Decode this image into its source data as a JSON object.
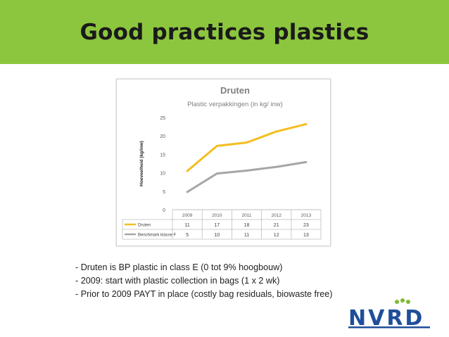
{
  "slide": {
    "title": "Good practices plastics",
    "bullets": [
      "- Druten is BP plastic in class E (0 tot 9% hoogbouw)",
      "- 2009: start with plastic  collection in bags (1 x 2 wk)",
      "- Prior to 2009 PAYT in place (costly bag residuals, biowaste free)"
    ],
    "logo_text": "NVRD",
    "colors": {
      "band": "#8cc63e",
      "logo_green": "#7dbb2f",
      "logo_blue": "#1f4e9a"
    }
  },
  "chart_data": {
    "type": "line",
    "title": "Druten",
    "subtitle": "Plastic verpakkingen (in kg/ inw)",
    "ylabel": "Hoeveelheid (kg/inw)",
    "xlabel": "",
    "categories": [
      "2009",
      "2010",
      "2011",
      "2012",
      "2013"
    ],
    "ylim": [
      0,
      25
    ],
    "yticks": [
      0,
      5,
      10,
      15,
      20,
      25
    ],
    "grid": false,
    "series": [
      {
        "name": "Druten",
        "color": "#f5bd1f",
        "values": [
          10.5,
          17.3,
          18.2,
          21.2,
          23.2
        ],
        "table_values": [
          "11",
          "17",
          "18",
          "21",
          "23"
        ]
      },
      {
        "name": "Benchmark klasse F",
        "color": "#a6a6a6",
        "values": [
          4.8,
          9.8,
          10.6,
          11.6,
          12.9
        ],
        "table_values": [
          "5",
          "10",
          "11",
          "12",
          "13"
        ]
      }
    ]
  }
}
